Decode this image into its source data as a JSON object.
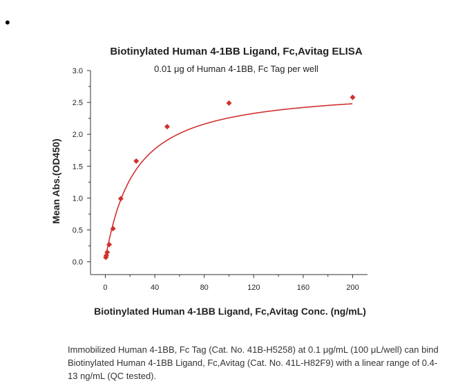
{
  "bullet": "•",
  "chart_data": {
    "type": "scatter",
    "title": "Biotinylated Human 4-1BB Ligand, Fc,Avitag ELISA",
    "subtitle": "0.01 μg of Human 4-1BB, Fc Tag per well",
    "xlabel": "Biotinylated Human 4-1BB Ligand, Fc,Avitag Conc. (ng/mL)",
    "ylabel": "Mean Abs.(OD450)",
    "xlim": [
      -12,
      212
    ],
    "ylim": [
      -0.2,
      3.0
    ],
    "x_ticks": [
      0,
      40,
      80,
      120,
      160,
      200
    ],
    "x_tick_labels": [
      "0",
      "40",
      "80",
      "120",
      "160",
      "200"
    ],
    "y_ticks": [
      0.0,
      0.5,
      1.0,
      1.5,
      2.0,
      2.5,
      3.0
    ],
    "y_tick_labels": [
      "0.0",
      "0.5",
      "1.0",
      "1.5",
      "2.0",
      "2.5",
      "3.0"
    ],
    "grid": false,
    "color": "#d0312d",
    "fit_curve": true,
    "series": [
      {
        "x": [
          0.39,
          0.78,
          1.56,
          3.13,
          6.25,
          12.5,
          25,
          50,
          100,
          200
        ],
        "y": [
          0.07,
          0.1,
          0.15,
          0.27,
          0.52,
          0.99,
          1.58,
          2.12,
          2.49,
          2.58
        ]
      }
    ]
  },
  "caption": "Immobilized Human 4-1BB, Fc Tag (Cat. No. 41B-H5258) at 0.1 μg/mL (100 μL/well) can bind Biotinylated Human 4-1BB Ligand, Fc,Avitag (Cat. No. 41L-H82F9) with a linear range of 0.4-13 ng/mL (QC tested)."
}
